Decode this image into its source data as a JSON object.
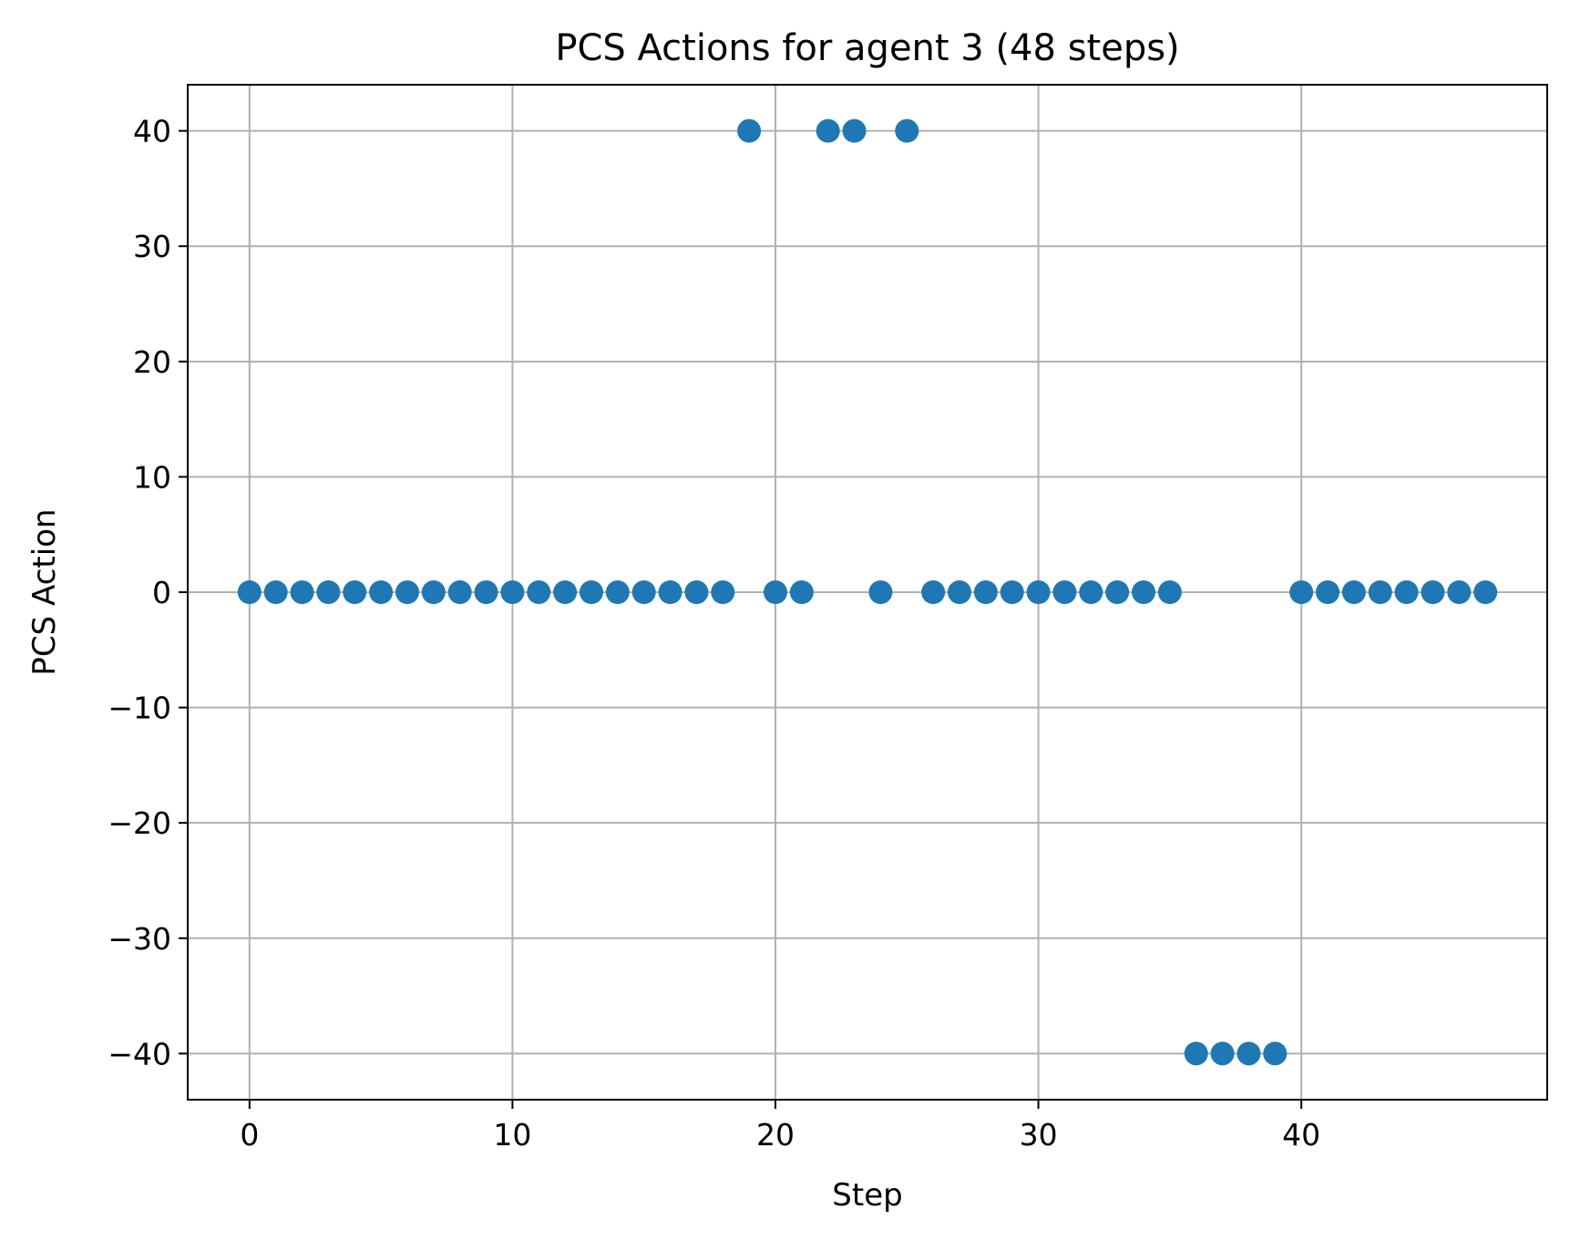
{
  "chart_data": {
    "type": "scatter",
    "title": "PCS Actions for agent 3 (48 steps)",
    "xlabel": "Step",
    "ylabel": "PCS Action",
    "xlim": [
      -2.35,
      49.35
    ],
    "ylim": [
      -44,
      44
    ],
    "xticks": [
      0,
      10,
      20,
      30,
      40
    ],
    "yticks": [
      -40,
      -30,
      -20,
      -10,
      0,
      10,
      20,
      30,
      40
    ],
    "xtick_labels": [
      "0",
      "10",
      "20",
      "30",
      "40"
    ],
    "ytick_labels": [
      "−40",
      "−30",
      "−20",
      "−10",
      "0",
      "10",
      "20",
      "30",
      "40"
    ],
    "grid": true,
    "marker_color": "#1f77b4",
    "series": [
      {
        "x": [
          0,
          1,
          2,
          3,
          4,
          5,
          6,
          7,
          8,
          9,
          10,
          11,
          12,
          13,
          14,
          15,
          16,
          17,
          18,
          19,
          20,
          21,
          22,
          23,
          24,
          25,
          26,
          27,
          28,
          29,
          30,
          31,
          32,
          33,
          34,
          35,
          36,
          37,
          38,
          39,
          40,
          41,
          42,
          43,
          44,
          45,
          46,
          47
        ],
        "y": [
          0,
          0,
          0,
          0,
          0,
          0,
          0,
          0,
          0,
          0,
          0,
          0,
          0,
          0,
          0,
          0,
          0,
          0,
          0,
          40,
          0,
          0,
          40,
          40,
          0,
          40,
          0,
          0,
          0,
          0,
          0,
          0,
          0,
          0,
          0,
          0,
          -40,
          -40,
          -40,
          -40,
          0,
          0,
          0,
          0,
          0,
          0,
          0,
          0
        ]
      }
    ]
  }
}
